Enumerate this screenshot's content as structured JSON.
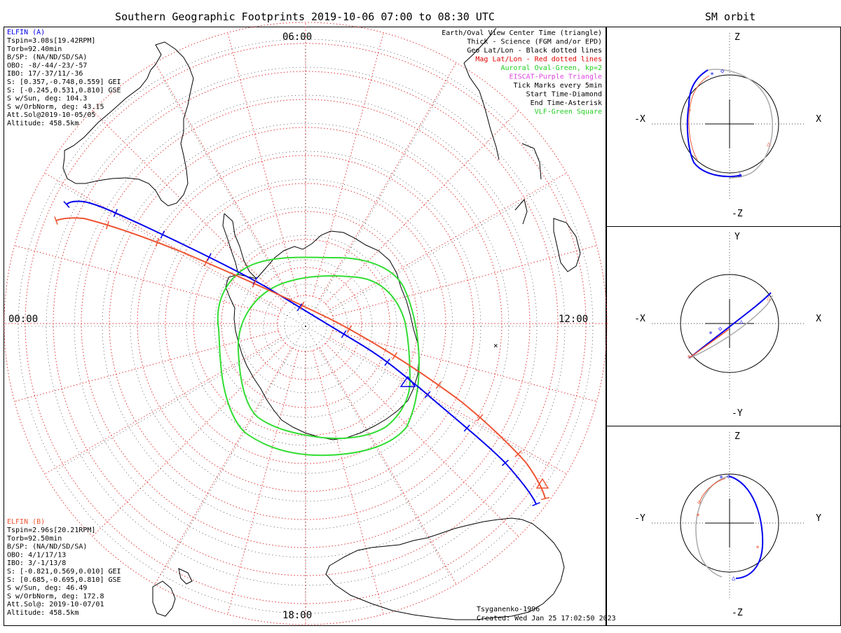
{
  "main_title": "Southern Geographic Footprints 2019-10-06 07:00 to 08:30 UTC",
  "orbit_title": "SM orbit",
  "hour_labels": {
    "top": "06:00",
    "left": "00:00",
    "right": "12:00",
    "bottom": "18:00"
  },
  "elfin_a": {
    "name": "ELFIN (A)",
    "lines": [
      "Tspin=3.08s[19.42RPM]",
      "Torb=92.40min",
      "B/SP: (NA/ND/SD/SA)",
      "OBO: -8/-44/-23/-57",
      "IBO: 17/-37/11/-36",
      "S: [0.357,-0.748,0.559] GEI",
      "S: [-0.245,0.531,0.810] GSE",
      "S w/Sun, deg: 104.3",
      "S w/OrbNorm, deg: 43.15",
      "Att.Sol@2019-10-05/05",
      "Altitude: 458.5km"
    ]
  },
  "elfin_b": {
    "name": "ELFIN (B)",
    "lines": [
      "Tspin=2.96s[20.21RPM]",
      "Torb=92.50min",
      "B/SP: (NA/ND/SD/SA)",
      "OBO: 4/1/17/13",
      "IBO: 3/-1/13/8",
      "S: [-0.821,0.569,0.010] GEI",
      "S: [0.685,-0.695,0.810] GSE",
      "S w/Sun, deg: 46.49",
      "S w/OrbNorm, deg: 172.8",
      "Att.Sol@: 2019-10-07/01",
      "Altitude: 458.5km"
    ]
  },
  "legend": [
    {
      "text": "Earth/Oval View Center Time (triangle)",
      "color": "#000000"
    },
    {
      "text": "Thick - Science (FGM and/or EPD)",
      "color": "#000000"
    },
    {
      "text": "Geo Lat/Lon - Black dotted lines",
      "color": "#000000"
    },
    {
      "text": "Mag Lat/Lon - Red dotted lines",
      "color": "#e00000"
    },
    {
      "text": "Auroral Oval-Green, kp=2",
      "color": "#22cc22"
    },
    {
      "text": "EISCAT-Purple Triangle",
      "color": "#dd44dd"
    },
    {
      "text": "Tick Marks every 5min",
      "color": "#000000"
    },
    {
      "text": "Start Time-Diamond",
      "color": "#000000"
    },
    {
      "text": "End Time-Asterisk",
      "color": "#000000"
    },
    {
      "text": "VLF-Green Square",
      "color": "#22cc22"
    }
  ],
  "model_label": "Tsyganenko-1996",
  "created_label": "Created: Wed Jan 25 17:02:50 2023",
  "orbit_panels": [
    {
      "up": "Z",
      "down": "-Z",
      "left": "-X",
      "right": "X"
    },
    {
      "up": "Y",
      "down": "-Y",
      "left": "-X",
      "right": "X"
    },
    {
      "up": "Z",
      "down": "-Z",
      "left": "-Y",
      "right": "Y"
    }
  ],
  "colors": {
    "elfin_a": "#0000ee",
    "elfin_b": "#ee5533",
    "mag_grid": "#e33333",
    "oval": "#33dd33",
    "orbit_gray": "#aaaaaa"
  }
}
